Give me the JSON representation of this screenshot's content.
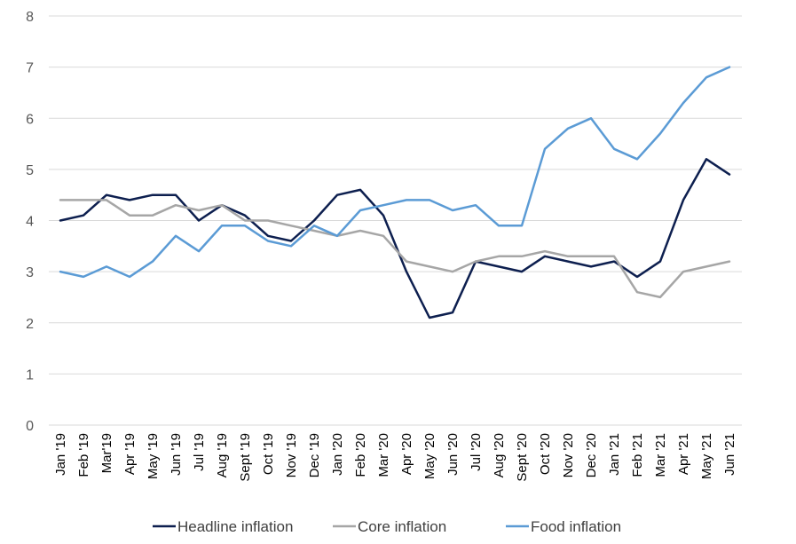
{
  "chart_data": {
    "type": "line",
    "categories": [
      "Jan '19",
      "Feb '19",
      "Mar'19",
      "Apr '19",
      "May '19",
      "Jun '19",
      "Jul '19",
      "Aug '19",
      "Sept '19",
      "Oct '19",
      "Nov '19",
      "Dec '19",
      "Jan '20",
      "Feb '20",
      "Mar '20",
      "Apr '20",
      "May '20",
      "Jun '20",
      "Jul '20",
      "Aug '20",
      "Sept '20",
      "Oct '20",
      "Nov '20",
      "Dec '20",
      "Jan '21",
      "Feb '21",
      "Mar '21",
      "Apr '21",
      "May '21",
      "Jun '21"
    ],
    "series": [
      {
        "name": "Headline inflation",
        "color": "#0d1f4f",
        "values": [
          4.0,
          4.1,
          4.5,
          4.4,
          4.5,
          4.5,
          4.0,
          4.3,
          4.1,
          3.7,
          3.6,
          4.0,
          4.5,
          4.6,
          4.1,
          3.0,
          2.1,
          2.2,
          3.2,
          3.1,
          3.0,
          3.3,
          3.2,
          3.1,
          3.2,
          2.9,
          3.2,
          4.4,
          5.2,
          4.9
        ]
      },
      {
        "name": "Core inflation",
        "color": "#a6a6a6",
        "values": [
          4.4,
          4.4,
          4.4,
          4.1,
          4.1,
          4.3,
          4.2,
          4.3,
          4.0,
          4.0,
          3.9,
          3.8,
          3.7,
          3.8,
          3.7,
          3.2,
          3.1,
          3.0,
          3.2,
          3.3,
          3.3,
          3.4,
          3.3,
          3.3,
          3.3,
          2.6,
          2.5,
          3.0,
          3.1,
          3.2
        ]
      },
      {
        "name": "Food inflation",
        "color": "#5b9bd5",
        "values": [
          3.0,
          2.9,
          3.1,
          2.9,
          3.2,
          3.7,
          3.4,
          3.9,
          3.9,
          3.6,
          3.5,
          3.9,
          3.7,
          4.2,
          4.3,
          4.4,
          4.4,
          4.2,
          4.3,
          3.9,
          3.9,
          5.4,
          5.8,
          6.0,
          5.4,
          5.2,
          5.7,
          6.3,
          6.8,
          7.0
        ]
      }
    ],
    "ylim": [
      0,
      8
    ],
    "yticks": [
      0,
      1,
      2,
      3,
      4,
      5,
      6,
      7,
      8
    ],
    "grid": true,
    "legend": "bottom"
  }
}
